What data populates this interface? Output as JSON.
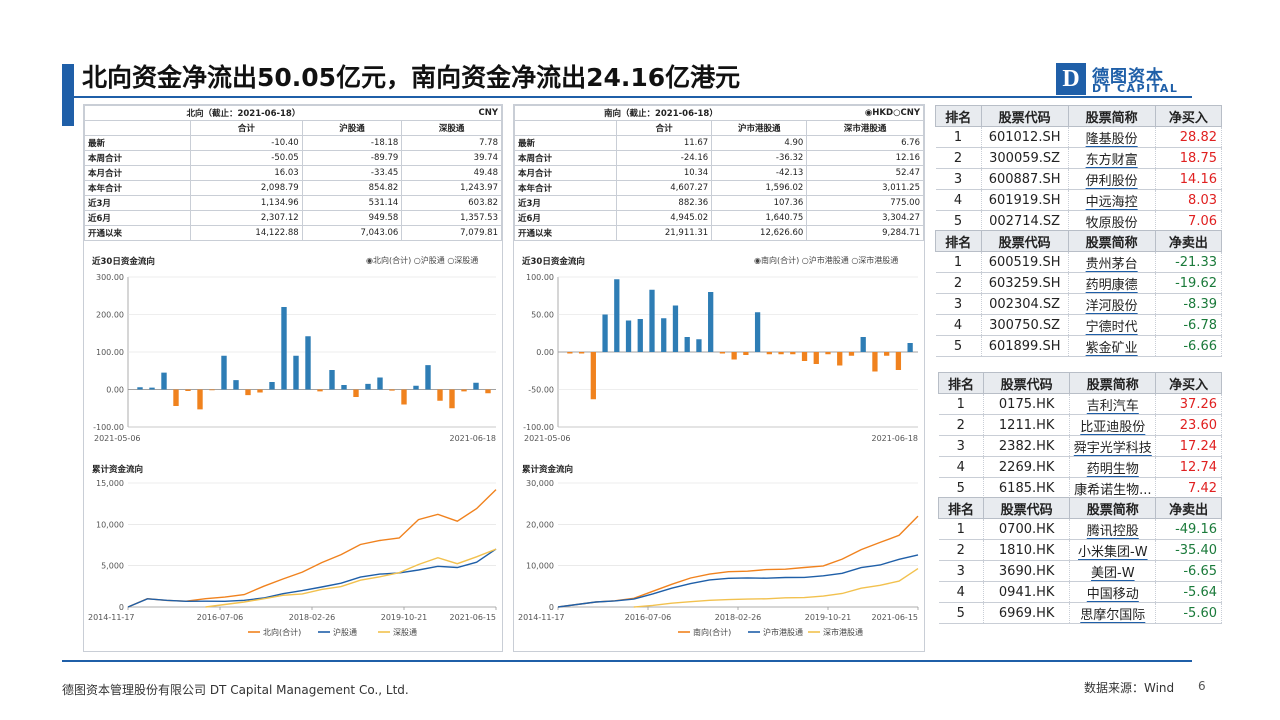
{
  "slide": {
    "title": "北向资金净流出50.05亿元，南向资金净流出24.16亿港元",
    "logo_cn": "德图资本",
    "logo_en": "DT CAPITAL",
    "logo_letter": "D",
    "footer_left": "德图资本管理股份有限公司  DT Capital Management Co., Ltd.",
    "footer_right": "数据来源：Wind",
    "page_number": "6"
  },
  "north": {
    "table_title": "北向（截止：2021-06-18）",
    "currency": "CNY",
    "columns": [
      "合计",
      "沪股通",
      "深股通"
    ],
    "rows": [
      {
        "label": "最新",
        "values": [
          "-10.40",
          "-18.18",
          "7.78"
        ]
      },
      {
        "label": "本周合计",
        "values": [
          "-50.05",
          "-89.79",
          "39.74"
        ]
      },
      {
        "label": "本月合计",
        "values": [
          "16.03",
          "-33.45",
          "49.48"
        ]
      },
      {
        "label": "本年合计",
        "values": [
          "2,098.79",
          "854.82",
          "1,243.97"
        ]
      },
      {
        "label": "近3月",
        "values": [
          "1,134.96",
          "531.14",
          "603.82"
        ]
      },
      {
        "label": "近6月",
        "values": [
          "2,307.12",
          "949.58",
          "1,357.53"
        ]
      },
      {
        "label": "开通以来",
        "values": [
          "14,122.88",
          "7,043.06",
          "7,079.81"
        ]
      }
    ],
    "bar_title": "近30日资金流向",
    "bar_options": [
      "北向(合计)",
      "沪股通",
      "深股通"
    ],
    "line_title": "累计资金流向",
    "line_legend": [
      "北向(合计)",
      "沪股通",
      "深股通"
    ]
  },
  "south": {
    "table_title": "南向（截止：2021-06-18）",
    "currency_options": [
      "HKD",
      "CNY"
    ],
    "columns": [
      "合计",
      "沪市港股通",
      "深市港股通"
    ],
    "rows": [
      {
        "label": "最新",
        "values": [
          "11.67",
          "4.90",
          "6.76"
        ]
      },
      {
        "label": "本周合计",
        "values": [
          "-24.16",
          "-36.32",
          "12.16"
        ]
      },
      {
        "label": "本月合计",
        "values": [
          "10.34",
          "-42.13",
          "52.47"
        ]
      },
      {
        "label": "本年合计",
        "values": [
          "4,607.27",
          "1,596.02",
          "3,011.25"
        ]
      },
      {
        "label": "近3月",
        "values": [
          "882.36",
          "107.36",
          "775.00"
        ]
      },
      {
        "label": "近6月",
        "values": [
          "4,945.02",
          "1,640.75",
          "3,304.27"
        ]
      },
      {
        "label": "开通以来",
        "values": [
          "21,911.31",
          "12,626.60",
          "9,284.71"
        ]
      }
    ],
    "bar_title": "近30日资金流向",
    "bar_options": [
      "南向(合计)",
      "沪市港股通",
      "深市港股通"
    ],
    "line_title": "累计资金流向",
    "line_legend": [
      "南向(合计)",
      "沪市港股通",
      "深市港股通"
    ]
  },
  "rank_tables": [
    {
      "headers": [
        "排名",
        "股票代码",
        "股票简称",
        "净买入"
      ],
      "rows": [
        [
          "1",
          "601012.SH",
          "隆基股份",
          "28.82"
        ],
        [
          "2",
          "300059.SZ",
          "东方财富",
          "18.75"
        ],
        [
          "3",
          "600887.SH",
          "伊利股份",
          "14.16"
        ],
        [
          "4",
          "601919.SH",
          "中远海控",
          "8.03"
        ],
        [
          "5",
          "002714.SZ",
          "牧原股份",
          "7.06"
        ]
      ]
    },
    {
      "headers": [
        "排名",
        "股票代码",
        "股票简称",
        "净卖出"
      ],
      "rows": [
        [
          "1",
          "600519.SH",
          "贵州茅台",
          "-21.33"
        ],
        [
          "2",
          "603259.SH",
          "药明康德",
          "-19.62"
        ],
        [
          "3",
          "002304.SZ",
          "洋河股份",
          "-8.39"
        ],
        [
          "4",
          "300750.SZ",
          "宁德时代",
          "-6.78"
        ],
        [
          "5",
          "601899.SH",
          "紫金矿业",
          "-6.66"
        ]
      ]
    },
    {
      "headers": [
        "排名",
        "股票代码",
        "股票简称",
        "净买入"
      ],
      "rows": [
        [
          "1",
          "0175.HK",
          "吉利汽车",
          "37.26"
        ],
        [
          "2",
          "1211.HK",
          "比亚迪股份",
          "23.60"
        ],
        [
          "3",
          "2382.HK",
          "舜宇光学科技",
          "17.24"
        ],
        [
          "4",
          "2269.HK",
          "药明生物",
          "12.74"
        ],
        [
          "5",
          "6185.HK",
          "康希诺生物...",
          "7.42"
        ]
      ]
    },
    {
      "headers": [
        "排名",
        "股票代码",
        "股票简称",
        "净卖出"
      ],
      "rows": [
        [
          "1",
          "0700.HK",
          "腾讯控股",
          "-49.16"
        ],
        [
          "2",
          "1810.HK",
          "小米集团-W",
          "-35.40"
        ],
        [
          "3",
          "3690.HK",
          "美团-W",
          "-6.65"
        ],
        [
          "4",
          "0941.HK",
          "中国移动",
          "-5.64"
        ],
        [
          "5",
          "6969.HK",
          "思摩尔国际",
          "-5.60"
        ]
      ]
    }
  ],
  "colors": {
    "accent": "#1f5fa8",
    "pos_bar": "#2e7db5",
    "neg_bar": "#f0821e",
    "total_line": "#f0821e",
    "sh_line": "#1f5fa8",
    "sz_line": "#f2c14e",
    "up": "#e02020",
    "down": "#1a7a3a"
  },
  "chart_data": [
    {
      "type": "bar",
      "title": "近30日资金流向",
      "x_start": "2021-05-06",
      "x_end": "2021-06-18",
      "ylim": [
        -100,
        300
      ],
      "yticks": [
        "300.00",
        "200.00",
        "100.00",
        "0.00",
        "-100.00"
      ],
      "values": [
        6,
        5,
        45,
        -44,
        -4,
        -53,
        -2,
        90,
        25,
        -15,
        -8,
        20,
        220,
        90,
        142,
        -5,
        52,
        12,
        -20,
        15,
        32,
        -3,
        -40,
        10,
        65,
        -30,
        -50,
        -5,
        18,
        -10
      ]
    },
    {
      "type": "bar",
      "title": "近30日资金流向",
      "x_start": "2021-05-06",
      "x_end": "2021-06-18",
      "ylim": [
        -100,
        100
      ],
      "yticks": [
        "100.00",
        "50.00",
        "0.00",
        "-50.00",
        "-100.00"
      ],
      "values": [
        -2,
        -2,
        -63,
        50,
        97,
        42,
        44,
        83,
        45,
        62,
        20,
        17,
        80,
        -2,
        -10,
        -4,
        53,
        -3,
        -3,
        -3,
        -12,
        -16,
        -3,
        -18,
        -5,
        20,
        -26,
        -5,
        -24,
        12
      ]
    },
    {
      "type": "line",
      "title": "累计资金流向",
      "xticks": [
        "2014-11-17",
        "2016-07-06",
        "2018-02-26",
        "2019-10-21",
        "2021-06-15"
      ],
      "yticks": [
        "15,000",
        "10,000",
        "5,000",
        "0"
      ],
      "ylim": [
        0,
        15000
      ],
      "series": [
        {
          "name": "北向(合计)",
          "values": [
            0,
            1000,
            800,
            700,
            1000,
            1200,
            1500,
            2500,
            3400,
            4200,
            5400,
            6300,
            7600,
            8000,
            8400,
            10500,
            11300,
            10300,
            12000,
            14200
          ]
        },
        {
          "name": "沪股通",
          "values": [
            0,
            1000,
            800,
            700,
            700,
            700,
            800,
            1100,
            1600,
            2000,
            2400,
            2900,
            3600,
            4000,
            4100,
            4500,
            4900,
            4800,
            5400,
            7000
          ]
        },
        {
          "name": "深股通",
          "values": [
            null,
            null,
            null,
            null,
            0,
            300,
            600,
            1000,
            1400,
            1600,
            2100,
            2500,
            3200,
            3700,
            4100,
            5200,
            5900,
            5300,
            6000,
            7000
          ]
        }
      ]
    },
    {
      "type": "line",
      "title": "累计资金流向",
      "xticks": [
        "2014-11-17",
        "2016-07-06",
        "2018-02-26",
        "2019-10-21",
        "2021-06-15"
      ],
      "yticks": [
        "30,000",
        "20,000",
        "10,000",
        "0"
      ],
      "ylim": [
        0,
        30000
      ],
      "series": [
        {
          "name": "南向(合计)",
          "values": [
            0,
            600,
            1200,
            1500,
            2100,
            3800,
            5500,
            7000,
            8000,
            8500,
            8700,
            9000,
            9200,
            9500,
            10000,
            11500,
            14000,
            15500,
            17500,
            22000
          ]
        },
        {
          "name": "沪市港股通",
          "values": [
            0,
            600,
            1200,
            1500,
            1900,
            3200,
            4500,
            5700,
            6500,
            7000,
            7000,
            7000,
            7100,
            7200,
            7500,
            8200,
            9500,
            10200,
            11500,
            12600
          ]
        },
        {
          "name": "深市港股通",
          "values": [
            null,
            null,
            null,
            null,
            0,
            400,
            900,
            1300,
            1600,
            1800,
            1900,
            2000,
            2200,
            2300,
            2600,
            3300,
            4500,
            5300,
            6200,
            9300
          ]
        }
      ]
    }
  ]
}
